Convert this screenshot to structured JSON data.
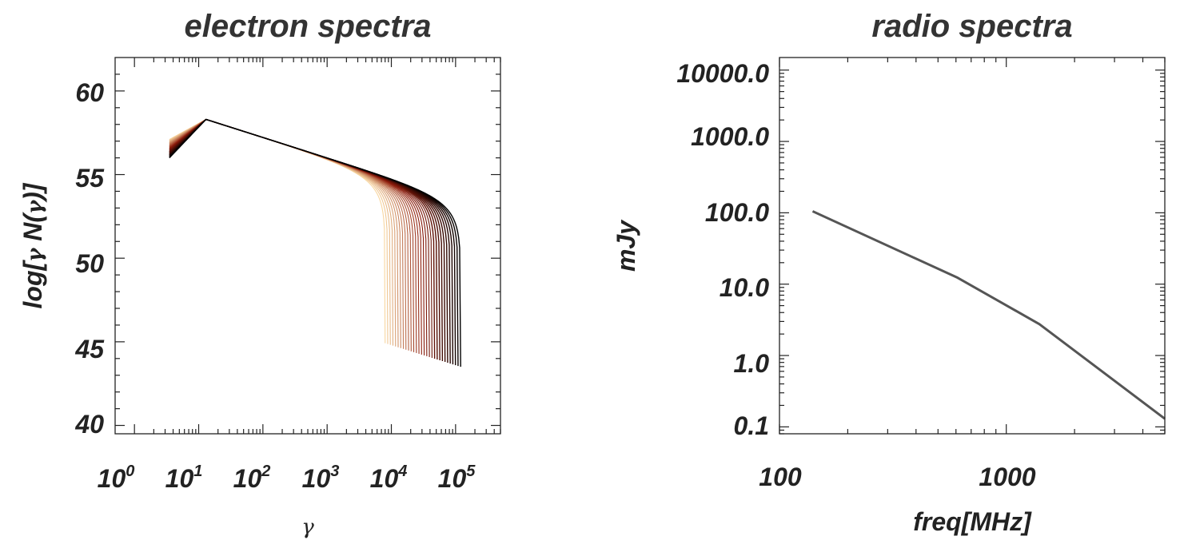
{
  "chart_data": [
    {
      "type": "line",
      "title": "electron spectra",
      "xlabel": "γ",
      "ylabel_parts": [
        "log[",
        "γ",
        " N(",
        "γ",
        ")]"
      ],
      "xscale": "log",
      "xlim": [
        0.5,
        500000
      ],
      "ylim": [
        39.5,
        62
      ],
      "x_tick_values": [
        1,
        10,
        100,
        1000,
        10000,
        100000
      ],
      "x_tick_labels": [
        {
          "base": "10",
          "exp": "0"
        },
        {
          "base": "10",
          "exp": "1"
        },
        {
          "base": "10",
          "exp": "2"
        },
        {
          "base": "10",
          "exp": "3"
        },
        {
          "base": "10",
          "exp": "4"
        },
        {
          "base": "10",
          "exp": "5"
        }
      ],
      "y_tick_values": [
        40,
        45,
        50,
        55,
        60
      ],
      "y_tick_labels": [
        "40",
        "45",
        "50",
        "55",
        "60"
      ],
      "grid": false,
      "legend": "none",
      "series_count": 30,
      "color_start": "#000000",
      "color_mid": "#8b1a0a",
      "color_end": "#f8d6a0",
      "curve_points": {
        "gamma_min": 3.5,
        "gamma_break": 13,
        "value_at_break": 58.3,
        "values_at_min_range": [
          56,
          57.1
        ],
        "value_at_1000": 56,
        "high_energy_slope": -1.2,
        "cutoff_gamma_range": [
          120000,
          8000
        ],
        "floor_value": 39.5
      }
    },
    {
      "type": "line",
      "title": "radio spectra",
      "xlabel": "freq[MHz]",
      "ylabel": "mJy",
      "xscale": "log",
      "yscale": "log",
      "xlim": [
        100,
        5000
      ],
      "ylim": [
        0.08,
        15000
      ],
      "x_tick_values": [
        100,
        1000
      ],
      "x_tick_labels": [
        "100",
        "1000"
      ],
      "y_tick_values": [
        0.1,
        1,
        10,
        100,
        1000,
        10000
      ],
      "y_tick_labels": [
        "0.1",
        "1.0",
        "10.0",
        "100.0",
        "1000.0",
        "10000.0"
      ],
      "grid": false,
      "legend": "none",
      "line_color": "#555555",
      "x": [
        140,
        610,
        1400,
        5000
      ],
      "y": [
        105,
        12.3,
        2.75,
        0.13
      ]
    }
  ]
}
